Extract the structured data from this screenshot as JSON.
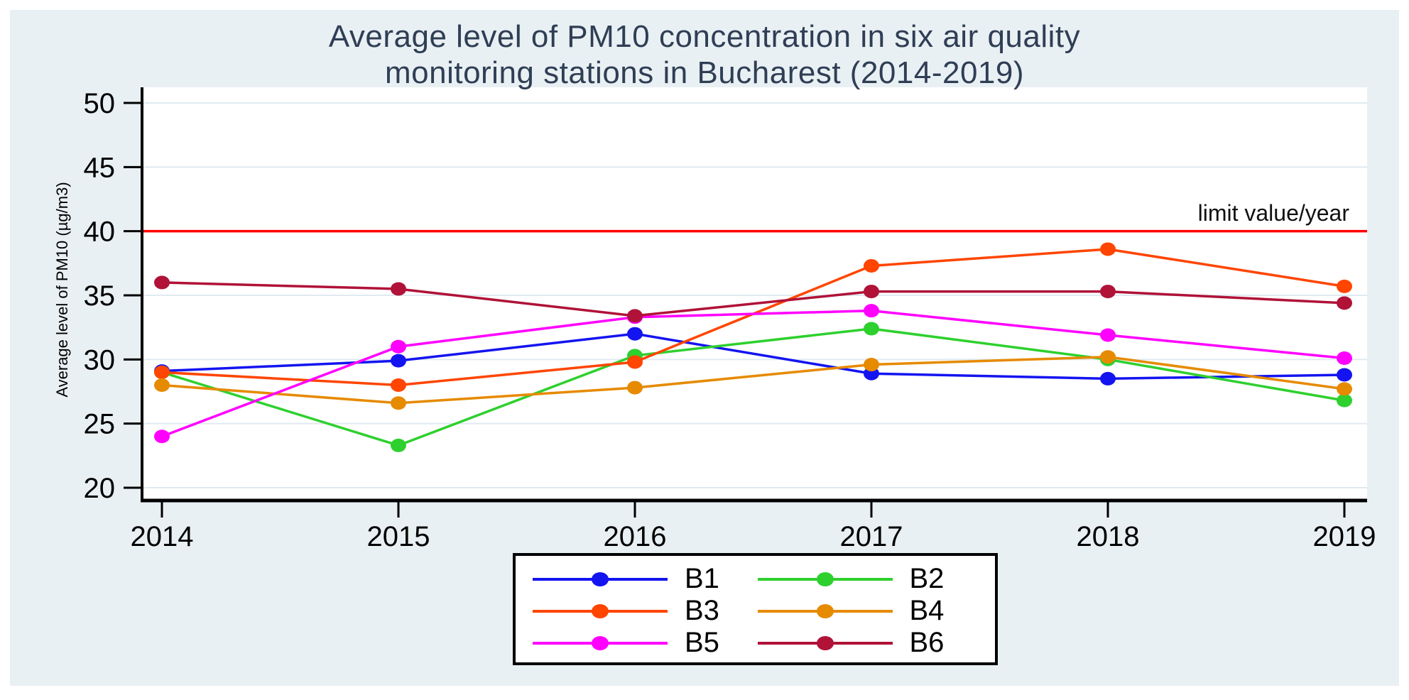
{
  "page": {
    "background": "#ffffff",
    "panel_background": "#e9f0f3"
  },
  "title": {
    "line1": "Average level of PM10 concentration in six air quality",
    "line2": "monitoring stations in Bucharest (2014-2019)",
    "color": "#2f3e55"
  },
  "y_axis": {
    "label": "Average level of PM10 (µg/m3)",
    "ticks": [
      50,
      45,
      40,
      35,
      30,
      25,
      20
    ],
    "min": 20,
    "max": 50
  },
  "x_axis": {
    "ticks": [
      "2014",
      "2015",
      "2016",
      "2017",
      "2018",
      "2019"
    ]
  },
  "limit_line": {
    "label": "limit value/year",
    "value": 40,
    "color": "#ff0000"
  },
  "colors": {
    "grid": "#dfeaf0",
    "axis": "#000000",
    "plot_background": "#ffffff",
    "tick_text": "#000000"
  },
  "chart_data": {
    "type": "line",
    "title": "Average level of PM10 concentration in six air quality monitoring stations in Bucharest (2014-2019)",
    "xlabel": "",
    "ylabel": "Average level of PM10 (µg/m3)",
    "x": [
      2014,
      2015,
      2016,
      2017,
      2018,
      2019
    ],
    "ylim": [
      20,
      50
    ],
    "y_tick_step": 5,
    "grid": true,
    "legend_position": "bottom",
    "reference_line": {
      "label": "limit value/year",
      "value": 40,
      "color": "#ff0000"
    },
    "series": [
      {
        "name": "B1",
        "color": "#1414f0",
        "values": [
          29.1,
          29.9,
          32.0,
          28.9,
          28.5,
          28.8
        ]
      },
      {
        "name": "B2",
        "color": "#2ed02e",
        "values": [
          29.0,
          23.3,
          30.3,
          32.4,
          30.0,
          26.8
        ]
      },
      {
        "name": "B3",
        "color": "#ff4500",
        "values": [
          29.0,
          28.0,
          29.8,
          37.3,
          38.6,
          35.7
        ]
      },
      {
        "name": "B4",
        "color": "#e68a00",
        "values": [
          28.0,
          26.6,
          27.8,
          29.6,
          30.2,
          27.7
        ]
      },
      {
        "name": "B5",
        "color": "#ff00ff",
        "values": [
          24.0,
          31.0,
          33.3,
          33.8,
          31.9,
          30.1
        ]
      },
      {
        "name": "B6",
        "color": "#b01238",
        "values": [
          36.0,
          35.5,
          33.4,
          35.3,
          35.3,
          34.4
        ]
      }
    ]
  }
}
